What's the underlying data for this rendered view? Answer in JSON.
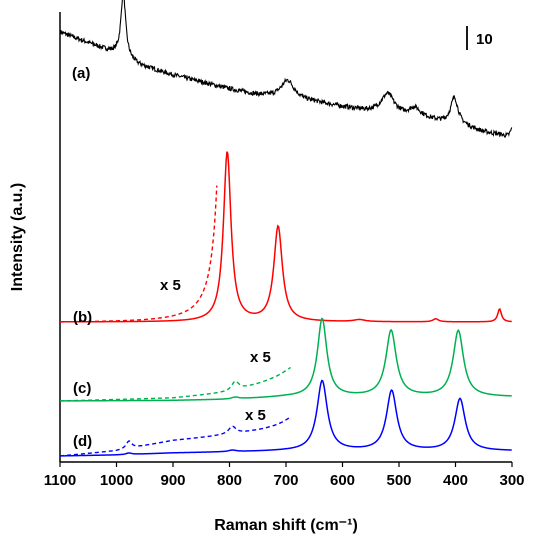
{
  "chart_data": {
    "type": "line",
    "title": "",
    "xlabel": "Raman shift (cm⁻¹)",
    "ylabel": "Intensity (a.u.)",
    "xlim": [
      1100,
      300
    ],
    "x_reversed": true,
    "y_ticks_shown": false,
    "grid": false,
    "x_ticks": [
      1100,
      1000,
      900,
      800,
      700,
      600,
      500,
      400,
      300
    ],
    "x_tick_labels": [
      "1100",
      "1000",
      "900",
      "800",
      "700",
      "600",
      "500",
      "400",
      "300"
    ],
    "scale_bar": {
      "label": "10",
      "value": 10
    },
    "colors": {
      "a": "#000000",
      "b": "#ff0000",
      "c": "#00b050",
      "d": "#0000ff"
    },
    "series": [
      {
        "name": "(a)",
        "noisy": true,
        "baseline": [
          [
            1100,
            155
          ],
          [
            1040,
            142
          ],
          [
            1000,
            133
          ],
          [
            960,
            122
          ],
          [
            900,
            112
          ],
          [
            850,
            105
          ],
          [
            800,
            98
          ],
          [
            750,
            92
          ],
          [
            700,
            89
          ],
          [
            650,
            85
          ],
          [
            600,
            80
          ],
          [
            560,
            76
          ],
          [
            520,
            73
          ],
          [
            480,
            70
          ],
          [
            450,
            68
          ],
          [
            420,
            64
          ],
          [
            380,
            60
          ],
          [
            350,
            55
          ],
          [
            320,
            52
          ],
          [
            300,
            48
          ]
        ],
        "peaks": [
          {
            "center": 988,
            "height": 65,
            "width": 5
          },
          {
            "center": 697,
            "height": 18,
            "width": 14
          },
          {
            "center": 520,
            "height": 20,
            "width": 14
          },
          {
            "center": 472,
            "height": 9,
            "width": 12
          },
          {
            "center": 402,
            "height": 27,
            "width": 8
          },
          {
            "center": 300,
            "height": 10,
            "width": 4
          }
        ]
      },
      {
        "name": "(b)",
        "baseline": [
          [
            1100,
            0
          ],
          [
            300,
            0
          ]
        ],
        "peaks": [
          {
            "center": 804,
            "height": 170,
            "width": 8
          },
          {
            "center": 714,
            "height": 95,
            "width": 9
          },
          {
            "center": 322,
            "height": 13,
            "width": 4
          },
          {
            "center": 435,
            "height": 3,
            "width": 6
          },
          {
            "center": 570,
            "height": 2,
            "width": 12
          }
        ]
      },
      {
        "name": "(c)",
        "baseline": [
          [
            1100,
            0
          ],
          [
            900,
            0.5
          ],
          [
            800,
            1.5
          ],
          [
            700,
            4
          ],
          [
            300,
            4
          ]
        ],
        "peaks": [
          {
            "center": 636,
            "height": 78,
            "width": 10
          },
          {
            "center": 514,
            "height": 66,
            "width": 11
          },
          {
            "center": 395,
            "height": 66,
            "width": 11
          },
          {
            "center": 790,
            "height": 1.8,
            "width": 8
          }
        ]
      },
      {
        "name": "(d)",
        "baseline": [
          [
            1100,
            0
          ],
          [
            1000,
            1
          ],
          [
            900,
            3
          ],
          [
            800,
            4
          ],
          [
            700,
            5
          ],
          [
            300,
            5
          ]
        ],
        "peaks": [
          {
            "center": 636,
            "height": 70,
            "width": 11
          },
          {
            "center": 513,
            "height": 60,
            "width": 11
          },
          {
            "center": 392,
            "height": 52,
            "width": 11
          },
          {
            "center": 978,
            "height": 1.5,
            "width": 6
          },
          {
            "center": 795,
            "height": 1.5,
            "width": 8
          }
        ]
      }
    ],
    "magnified_insets": [
      {
        "series": "(b)",
        "label": "x 5",
        "factor": 5,
        "x_range": [
          1100,
          822
        ]
      },
      {
        "series": "(c)",
        "label": "x 5",
        "factor": 5,
        "x_range": [
          1100,
          692
        ]
      },
      {
        "series": "(d)",
        "label": "x 5",
        "factor": 5,
        "x_range": [
          1100,
          692
        ]
      }
    ]
  }
}
